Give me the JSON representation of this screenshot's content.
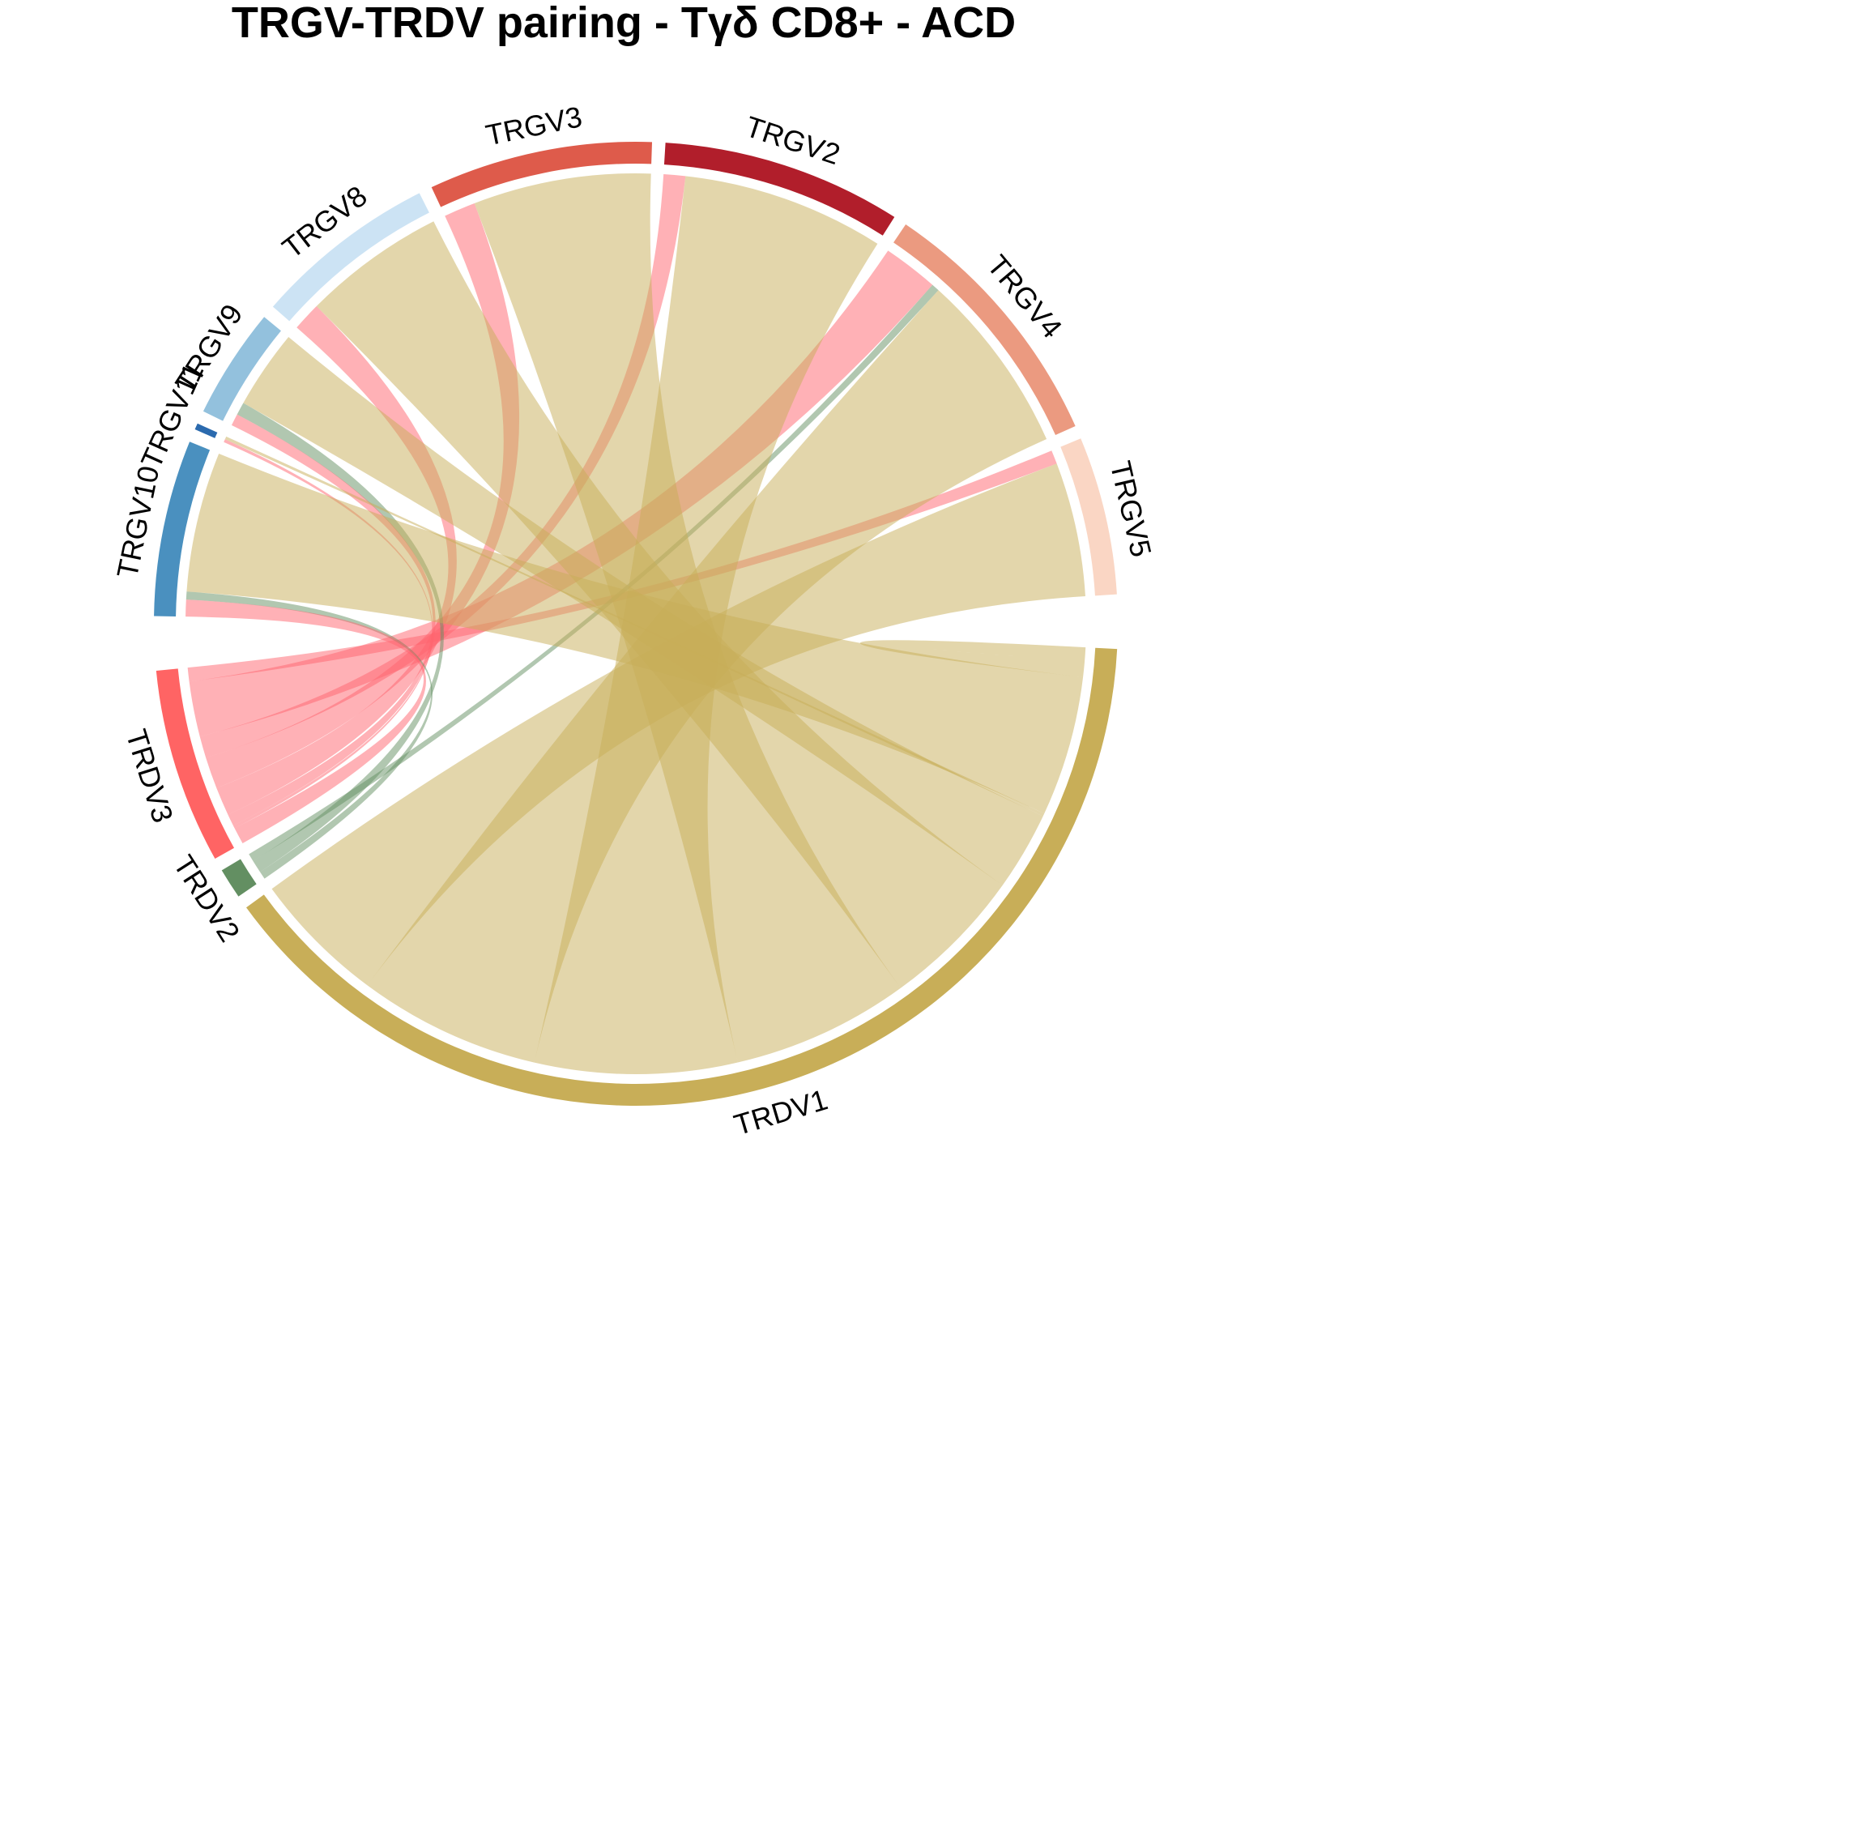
{
  "chart_data": {
    "type": "chord",
    "title": "TRGV-TRDV pairing - Tγδ CD8+ - ACD",
    "groups": [
      {
        "name": "TRGV5",
        "color": "#FAD6C4"
      },
      {
        "name": "TRGV4",
        "color": "#EB9A80"
      },
      {
        "name": "TRGV2",
        "color": "#B11E2B"
      },
      {
        "name": "TRGV3",
        "color": "#DE5B4B"
      },
      {
        "name": "TRGV8",
        "color": "#CCE3F4"
      },
      {
        "name": "TRGV9",
        "color": "#93C1DD"
      },
      {
        "name": "TRGV11",
        "color": "#2B6AAE"
      },
      {
        "name": "TRGV10",
        "color": "#4A90BF"
      },
      {
        "name": "TRDV3",
        "color": "#FF6464"
      },
      {
        "name": "TRDV2",
        "color": "#638F62"
      },
      {
        "name": "TRDV1",
        "color": "#C8AE58"
      }
    ],
    "link_colors": {
      "TRDV1": "rgba(200,174,88,0.5)",
      "TRDV2": "rgba(99,143,98,0.5)",
      "TRDV3": "rgba(255,100,110,0.5)"
    },
    "links": [
      {
        "from": "TRGV5",
        "to": "TRDV1",
        "value": 13.6
      },
      {
        "from": "TRGV5",
        "to": "TRDV3",
        "value": 1.4
      },
      {
        "from": "TRGV4",
        "to": "TRDV1",
        "value": 18.5
      },
      {
        "from": "TRGV4",
        "to": "TRDV2",
        "value": 0.8
      },
      {
        "from": "TRGV4",
        "to": "TRDV3",
        "value": 5.6
      },
      {
        "from": "TRGV2",
        "to": "TRDV1",
        "value": 20.5
      },
      {
        "from": "TRGV2",
        "to": "TRDV3",
        "value": 2.2
      },
      {
        "from": "TRGV3",
        "to": "TRDV1",
        "value": 18.0
      },
      {
        "from": "TRGV3",
        "to": "TRDV3",
        "value": 3.2
      },
      {
        "from": "TRGV8",
        "to": "TRDV1",
        "value": 14.5
      },
      {
        "from": "TRGV8",
        "to": "TRDV3",
        "value": 2.9
      },
      {
        "from": "TRGV9",
        "to": "TRDV1",
        "value": 8.0
      },
      {
        "from": "TRGV9",
        "to": "TRDV2",
        "value": 1.3
      },
      {
        "from": "TRGV9",
        "to": "TRDV3",
        "value": 1.2
      },
      {
        "from": "TRGV11",
        "to": "TRDV1",
        "value": 0.3
      },
      {
        "from": "TRGV11",
        "to": "TRDV3",
        "value": 0.3
      },
      {
        "from": "TRGV10",
        "to": "TRDV1",
        "value": 14.2
      },
      {
        "from": "TRGV10",
        "to": "TRDV2",
        "value": 0.8
      },
      {
        "from": "TRGV10",
        "to": "TRDV3",
        "value": 1.7
      },
      {
        "from": "TRDV1",
        "to": "TRDV1",
        "value": 1.5
      }
    ]
  }
}
